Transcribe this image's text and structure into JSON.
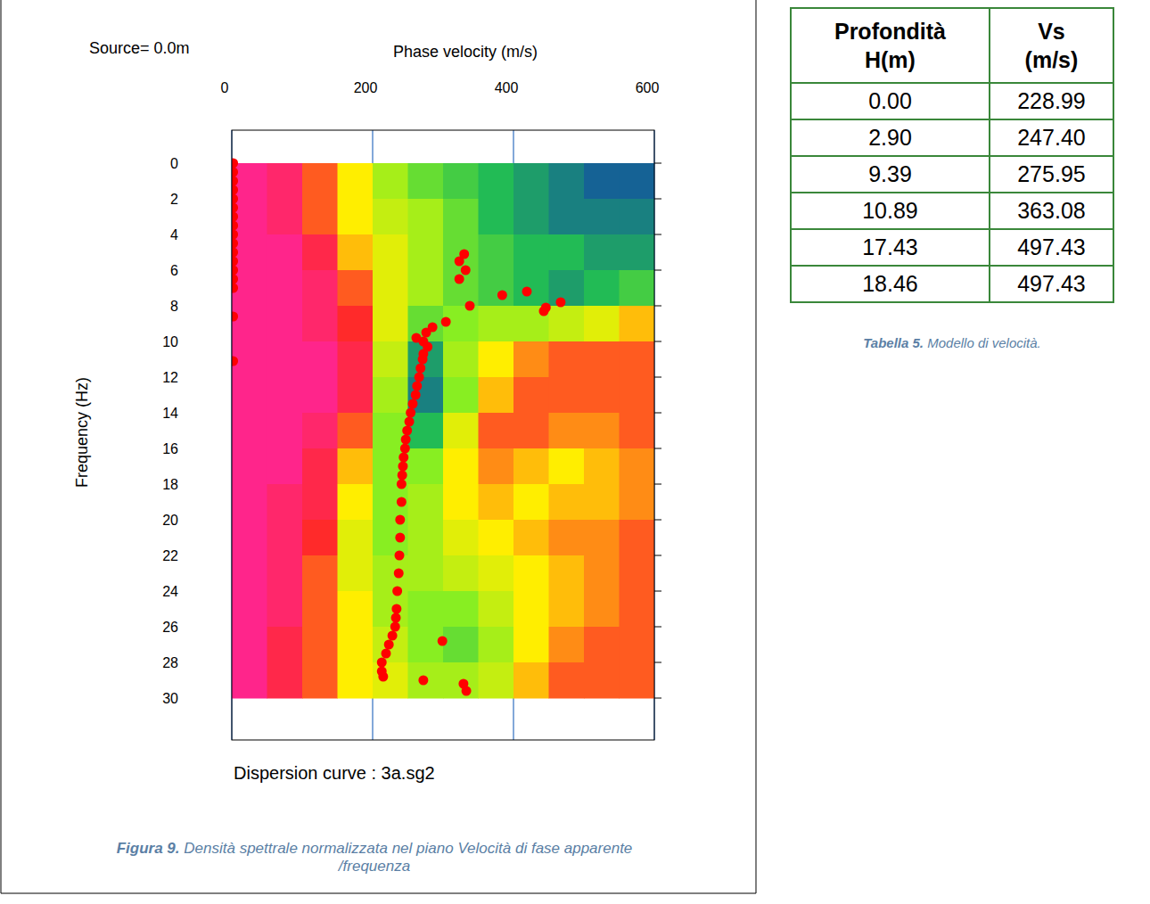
{
  "chart_data": {
    "type": "heatmap",
    "title": "Source= 0.0m",
    "x_label": "Phase velocity (m/s)",
    "y_label": "Frequency (Hz)",
    "subtitle": "Dispersion curve : 3a.sg2",
    "xlim": [
      0,
      600
    ],
    "xticks": [
      0,
      200,
      400,
      600
    ],
    "ylim": [
      -1.85,
      32.35
    ],
    "yticks": [
      0,
      2,
      4,
      6,
      8,
      10,
      12,
      14,
      16,
      18,
      20,
      22,
      24,
      26,
      28,
      30
    ],
    "heatmap": {
      "x_edges": [
        0,
        50,
        100,
        150,
        200,
        250,
        300,
        350,
        400,
        450,
        500,
        550,
        600
      ],
      "y_edges": [
        0,
        2,
        4,
        6,
        8,
        10,
        12,
        14,
        16,
        18,
        20,
        22,
        24,
        26,
        28,
        30
      ],
      "zlim": [
        0,
        1
      ],
      "cells": [
        [
          0.1,
          0.15,
          0.3,
          0.45,
          0.6,
          0.7,
          0.75,
          0.8,
          0.85,
          0.9,
          0.95,
          0.95
        ],
        [
          0.1,
          0.15,
          0.3,
          0.45,
          0.55,
          0.6,
          0.7,
          0.8,
          0.85,
          0.9,
          0.9,
          0.9
        ],
        [
          0.1,
          0.1,
          0.2,
          0.4,
          0.5,
          0.6,
          0.7,
          0.75,
          0.8,
          0.8,
          0.85,
          0.85
        ],
        [
          0.1,
          0.1,
          0.15,
          0.3,
          0.5,
          0.6,
          0.7,
          0.75,
          0.8,
          0.85,
          0.8,
          0.75
        ],
        [
          0.1,
          0.1,
          0.15,
          0.25,
          0.5,
          0.7,
          0.65,
          0.6,
          0.6,
          0.55,
          0.5,
          0.4
        ],
        [
          0.1,
          0.1,
          0.1,
          0.2,
          0.55,
          0.85,
          0.6,
          0.45,
          0.35,
          0.3,
          0.3,
          0.3
        ],
        [
          0.1,
          0.1,
          0.1,
          0.2,
          0.6,
          0.9,
          0.65,
          0.4,
          0.3,
          0.3,
          0.3,
          0.3
        ],
        [
          0.1,
          0.1,
          0.15,
          0.3,
          0.65,
          0.8,
          0.5,
          0.3,
          0.3,
          0.35,
          0.35,
          0.3
        ],
        [
          0.1,
          0.1,
          0.2,
          0.4,
          0.65,
          0.65,
          0.45,
          0.35,
          0.4,
          0.45,
          0.4,
          0.35
        ],
        [
          0.1,
          0.15,
          0.2,
          0.45,
          0.65,
          0.6,
          0.45,
          0.4,
          0.45,
          0.4,
          0.4,
          0.35
        ],
        [
          0.1,
          0.15,
          0.25,
          0.5,
          0.65,
          0.6,
          0.5,
          0.45,
          0.4,
          0.35,
          0.35,
          0.3
        ],
        [
          0.1,
          0.15,
          0.3,
          0.5,
          0.6,
          0.6,
          0.55,
          0.5,
          0.45,
          0.4,
          0.35,
          0.3
        ],
        [
          0.1,
          0.15,
          0.3,
          0.45,
          0.6,
          0.65,
          0.65,
          0.55,
          0.45,
          0.4,
          0.35,
          0.3
        ],
        [
          0.1,
          0.2,
          0.3,
          0.45,
          0.55,
          0.65,
          0.7,
          0.6,
          0.45,
          0.35,
          0.3,
          0.3
        ],
        [
          0.1,
          0.2,
          0.3,
          0.45,
          0.5,
          0.6,
          0.6,
          0.55,
          0.4,
          0.3,
          0.3,
          0.3
        ]
      ]
    },
    "series": [
      {
        "type": "scatter",
        "color": "#ff0000",
        "marker": "circle",
        "x": [
          2,
          2,
          2,
          2,
          2,
          2,
          2,
          2,
          2,
          2,
          2,
          2,
          2,
          2,
          2,
          2,
          2,
          330,
          323,
          332,
          323,
          384,
          419,
          467,
          446,
          443,
          338,
          304,
          285,
          276,
          262,
          272,
          278,
          272,
          271,
          268,
          266,
          263,
          261,
          257,
          254,
          252,
          249,
          247,
          246,
          244,
          243,
          242,
          241,
          241,
          239,
          239,
          238,
          237,
          235,
          234,
          233,
          232,
          228,
          299,
          223,
          219,
          213,
          213,
          215,
          272,
          329,
          333
        ],
        "values": [
          0,
          0.5,
          1,
          1.5,
          2,
          2.5,
          3,
          3.5,
          4,
          4.5,
          5,
          5.5,
          6,
          6.5,
          7,
          8.6,
          11.1,
          5.1,
          5.5,
          6.0,
          6.5,
          7.4,
          7.2,
          7.8,
          8.1,
          8.3,
          8.0,
          8.9,
          9.2,
          9.5,
          9.8,
          10.0,
          10.3,
          10.7,
          11.0,
          11.5,
          12,
          12.5,
          13,
          13.5,
          14,
          14.5,
          15,
          15.5,
          16,
          16.5,
          17,
          17.5,
          18,
          19,
          20,
          21,
          22,
          23,
          24,
          25,
          25.5,
          26,
          26.5,
          26.8,
          27,
          27.5,
          28,
          28.5,
          28.8,
          29.0,
          29.2,
          29.6
        ]
      }
    ]
  },
  "caption": {
    "label": "Figura 9.",
    "text": "Densità spettrale normalizzata nel piano Velocità di fase apparente /frequenza"
  },
  "table": {
    "header": [
      [
        "Profondità",
        "H(m)"
      ],
      [
        "Vs",
        "(m/s)"
      ]
    ],
    "rows": [
      [
        "0.00",
        "228.99"
      ],
      [
        "2.90",
        "247.40"
      ],
      [
        "9.39",
        "275.95"
      ],
      [
        "10.89",
        "363.08"
      ],
      [
        "17.43",
        "497.43"
      ],
      [
        "18.46",
        "497.43"
      ]
    ],
    "caption": {
      "label": "Tabella 5.",
      "text": "Modello di velocità."
    }
  }
}
